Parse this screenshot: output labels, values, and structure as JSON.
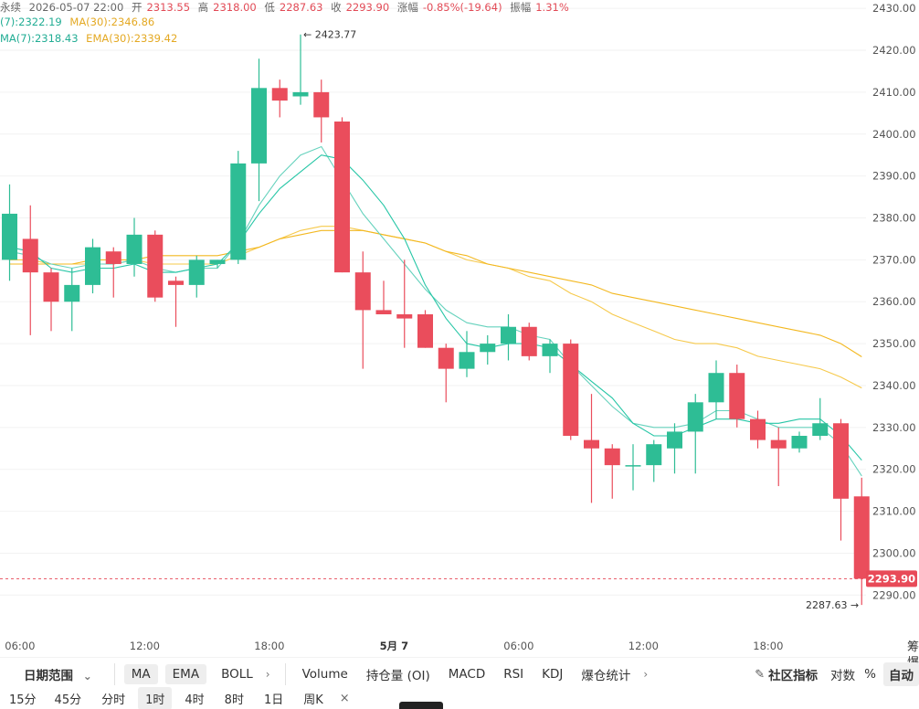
{
  "header": {
    "prefix": "永续",
    "datetime": "2026-05-07 22:00",
    "open_label": "开",
    "open": "2313.55",
    "high_label": "高",
    "high": "2318.00",
    "low_label": "低",
    "low": "2287.63",
    "close_label": "收",
    "close": "2293.90",
    "change_label": "涨幅",
    "change": "-0.85%(-19.64)",
    "amplitude_label": "振幅",
    "amplitude": "1.31%"
  },
  "indicators": {
    "ma7": "(7):2322.19",
    "ma30": "MA(30):2346.86",
    "ema7": "MA(7):2318.43",
    "ema30": "EMA(30):2339.42"
  },
  "colors": {
    "up": "#2ebd95",
    "down": "#ea4d5c",
    "ma7": "#26c6a6",
    "ma30": "#f3b820",
    "ema7": "#66d2bd",
    "ema30": "#f6c94b",
    "price_tag": "#e84a58"
  },
  "chart_data": {
    "type": "candlestick",
    "ylim": [
      2282,
      2432
    ],
    "y_ticks": [
      2290,
      2300,
      2310,
      2320,
      2330,
      2340,
      2350,
      2360,
      2370,
      2380,
      2390,
      2400,
      2410,
      2420,
      2430
    ],
    "y_tick_labels": [
      "2290.00",
      "2300.00",
      "2310.00",
      "2320.00",
      "2330.00",
      "2340.00",
      "2350.00",
      "2360.00",
      "2370.00",
      "2380.00",
      "2390.00",
      "2400.00",
      "2410.00",
      "2420.00",
      "2430.00"
    ],
    "x_ticks": [
      {
        "label": "06:00",
        "index": 0.5
      },
      {
        "label": "12:00",
        "index": 6.5
      },
      {
        "label": "18:00",
        "index": 12.5
      },
      {
        "label": "5月 7",
        "index": 18.5
      },
      {
        "label": "06:00",
        "index": 24.5
      },
      {
        "label": "12:00",
        "index": 30.5
      },
      {
        "label": "18:00",
        "index": 36.5
      }
    ],
    "candles": [
      {
        "o": 2370,
        "h": 2388,
        "l": 2365,
        "c": 2381
      },
      {
        "o": 2375,
        "h": 2383,
        "l": 2352,
        "c": 2367
      },
      {
        "o": 2367,
        "h": 2368,
        "l": 2353,
        "c": 2360
      },
      {
        "o": 2360,
        "h": 2368,
        "l": 2353,
        "c": 2364
      },
      {
        "o": 2364,
        "h": 2375,
        "l": 2362,
        "c": 2373
      },
      {
        "o": 2372,
        "h": 2373,
        "l": 2361,
        "c": 2369
      },
      {
        "o": 2369,
        "h": 2380,
        "l": 2366,
        "c": 2376
      },
      {
        "o": 2376,
        "h": 2377,
        "l": 2360,
        "c": 2361
      },
      {
        "o": 2365,
        "h": 2366,
        "l": 2354,
        "c": 2364
      },
      {
        "o": 2364,
        "h": 2371,
        "l": 2361,
        "c": 2370
      },
      {
        "o": 2369,
        "h": 2370,
        "l": 2368,
        "c": 2370
      },
      {
        "o": 2370,
        "h": 2396,
        "l": 2369,
        "c": 2393
      },
      {
        "o": 2393,
        "h": 2418,
        "l": 2384,
        "c": 2411
      },
      {
        "o": 2411,
        "h": 2413,
        "l": 2404,
        "c": 2408
      },
      {
        "o": 2409,
        "h": 2423.77,
        "l": 2407,
        "c": 2410
      },
      {
        "o": 2410,
        "h": 2413,
        "l": 2398,
        "c": 2404
      },
      {
        "o": 2403,
        "h": 2404,
        "l": 2367,
        "c": 2367
      },
      {
        "o": 2367,
        "h": 2372,
        "l": 2344,
        "c": 2358
      },
      {
        "o": 2358,
        "h": 2365,
        "l": 2357,
        "c": 2357
      },
      {
        "o": 2357,
        "h": 2370,
        "l": 2349,
        "c": 2356
      },
      {
        "o": 2357,
        "h": 2358,
        "l": 2349,
        "c": 2349
      },
      {
        "o": 2349,
        "h": 2350,
        "l": 2336,
        "c": 2344
      },
      {
        "o": 2344,
        "h": 2353,
        "l": 2342,
        "c": 2348
      },
      {
        "o": 2348,
        "h": 2352,
        "l": 2345,
        "c": 2350
      },
      {
        "o": 2350,
        "h": 2357,
        "l": 2346,
        "c": 2354
      },
      {
        "o": 2354,
        "h": 2355,
        "l": 2346,
        "c": 2347
      },
      {
        "o": 2347,
        "h": 2351,
        "l": 2343,
        "c": 2350
      },
      {
        "o": 2350,
        "h": 2351,
        "l": 2327,
        "c": 2328
      },
      {
        "o": 2327,
        "h": 2338,
        "l": 2312,
        "c": 2325
      },
      {
        "o": 2325,
        "h": 2326,
        "l": 2313,
        "c": 2321
      },
      {
        "o": 2321,
        "h": 2326,
        "l": 2315,
        "c": 2321
      },
      {
        "o": 2321,
        "h": 2327,
        "l": 2317,
        "c": 2326
      },
      {
        "o": 2325,
        "h": 2331,
        "l": 2319,
        "c": 2329
      },
      {
        "o": 2329,
        "h": 2338,
        "l": 2319,
        "c": 2336
      },
      {
        "o": 2336,
        "h": 2346,
        "l": 2332,
        "c": 2343
      },
      {
        "o": 2343,
        "h": 2345,
        "l": 2330,
        "c": 2332
      },
      {
        "o": 2332,
        "h": 2334,
        "l": 2325,
        "c": 2327
      },
      {
        "o": 2327,
        "h": 2330,
        "l": 2316,
        "c": 2325
      },
      {
        "o": 2325,
        "h": 2329,
        "l": 2324,
        "c": 2328
      },
      {
        "o": 2328,
        "h": 2337,
        "l": 2327,
        "c": 2331
      },
      {
        "o": 2331,
        "h": 2332,
        "l": 2303,
        "c": 2313
      },
      {
        "o": 2313.55,
        "h": 2318.0,
        "l": 2287.63,
        "c": 2293.9
      }
    ],
    "ma7": [
      2373,
      2372,
      2368,
      2367,
      2368,
      2368,
      2369,
      2367,
      2367,
      2368,
      2369,
      2374,
      2381,
      2387,
      2391,
      2395,
      2394,
      2389,
      2383,
      2375,
      2364,
      2356,
      2350,
      2349,
      2350,
      2350,
      2349,
      2345,
      2341,
      2337,
      2331,
      2328,
      2328,
      2330,
      2332,
      2332,
      2331,
      2331,
      2332,
      2332,
      2328,
      2322.19
    ],
    "ema7": [
      2372,
      2371,
      2369,
      2368,
      2369,
      2369,
      2370,
      2368,
      2367,
      2368,
      2368,
      2374,
      2383,
      2390,
      2395,
      2397,
      2389,
      2381,
      2375,
      2369,
      2363,
      2358,
      2355,
      2354,
      2354,
      2352,
      2351,
      2345,
      2340,
      2335,
      2331,
      2330,
      2330,
      2331,
      2334,
      2334,
      2332,
      2330,
      2330,
      2330,
      2326,
      2318.43
    ],
    "ma30": [
      2369,
      2369,
      2369,
      2369,
      2370,
      2370,
      2370,
      2371,
      2371,
      2371,
      2371,
      2372,
      2373,
      2375,
      2376,
      2377,
      2377,
      2377,
      2376,
      2375,
      2374,
      2372,
      2371,
      2369,
      2368,
      2367,
      2366,
      2365,
      2364,
      2362,
      2361,
      2360,
      2359,
      2358,
      2357,
      2356,
      2355,
      2354,
      2353,
      2352,
      2350,
      2346.86
    ],
    "ema30": [
      2370,
      2370,
      2369,
      2369,
      2369,
      2369,
      2370,
      2369,
      2369,
      2369,
      2369,
      2371,
      2373,
      2375,
      2377,
      2378,
      2378,
      2377,
      2376,
      2375,
      2374,
      2372,
      2370,
      2369,
      2368,
      2366,
      2365,
      2362,
      2360,
      2357,
      2355,
      2353,
      2351,
      2350,
      2350,
      2349,
      2347,
      2346,
      2345,
      2344,
      2342,
      2339.42
    ],
    "annotations": {
      "max_label": "← 2423.77",
      "min_label": "2287.63 →",
      "last_price": "2293.90"
    }
  },
  "toolbar": {
    "range": "日期范围",
    "ma": "MA",
    "ema": "EMA",
    "boll": "BOLL",
    "volume": "Volume",
    "oi": "持仓量 (OI)",
    "macd": "MACD",
    "rsi": "RSI",
    "kdj": "KDJ",
    "liq": "爆仓统计",
    "community": "社区指标",
    "log": "对数",
    "pct": "%",
    "auto": "自动",
    "right_top": "筹",
    "right_bottom": "爆"
  },
  "timeframes": {
    "m15": "15分",
    "m45": "45分",
    "min": "分时",
    "h1": "1时",
    "h4": "4时",
    "h8": "8时",
    "d1": "1日",
    "w1": "周K",
    "close": "×"
  }
}
